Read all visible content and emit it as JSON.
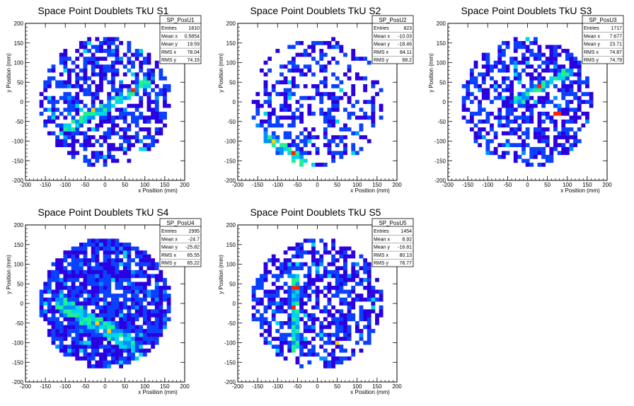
{
  "chart_data": [
    {
      "type": "heatmap",
      "title": "Space Point Doublets TkU S1",
      "histogram_name": "SP_PosU1",
      "xlabel": "x Position (mm)",
      "ylabel": "y Position (mm)",
      "xlim": [
        -200,
        200
      ],
      "ylim": [
        -200,
        200
      ],
      "xticks": [
        -200,
        -150,
        -100,
        -50,
        0,
        50,
        100,
        150,
        200
      ],
      "yticks": [
        -200,
        -150,
        -100,
        -50,
        0,
        50,
        100,
        150,
        200
      ],
      "stats": [
        {
          "label": "Entries",
          "value": "1810"
        },
        {
          "label": "Mean x",
          "value": "0.5854"
        },
        {
          "label": "Mean y",
          "value": "19.59"
        },
        {
          "label": "RMS x",
          "value": "78.04"
        },
        {
          "label": "RMS y",
          "value": "74.15"
        }
      ],
      "acceptance_radius": 165,
      "band": {
        "x0": -100,
        "y0": -70,
        "x1": 110,
        "y1": 50,
        "width": 10
      },
      "hotspots": [
        [
          70,
          35
        ],
        [
          -30,
          -20
        ],
        [
          20,
          0
        ]
      ],
      "fill_fraction": 0.55
    },
    {
      "type": "heatmap",
      "title": "Space Point Doublets TkU S2",
      "histogram_name": "SP_PosU2",
      "xlabel": "x Position (mm)",
      "ylabel": "y Position (mm)",
      "xlim": [
        -200,
        200
      ],
      "ylim": [
        -200,
        200
      ],
      "xticks": [
        -200,
        -150,
        -100,
        -50,
        0,
        50,
        100,
        150,
        200
      ],
      "yticks": [
        -200,
        -150,
        -100,
        -50,
        0,
        50,
        100,
        150,
        200
      ],
      "stats": [
        {
          "label": "Entries",
          "value": "823"
        },
        {
          "label": "Mean x",
          "value": "-10.03"
        },
        {
          "label": "Mean y",
          "value": "-18.46"
        },
        {
          "label": "RMS x",
          "value": "84.11"
        },
        {
          "label": "RMS y",
          "value": "68.2"
        }
      ],
      "acceptance_radius": 165,
      "band": {
        "x0": -130,
        "y0": -90,
        "x1": -40,
        "y1": -150,
        "width": 12
      },
      "hotspots": [
        [
          -110,
          -100
        ],
        [
          -60,
          -130
        ]
      ],
      "fill_fraction": 0.4
    },
    {
      "type": "heatmap",
      "title": "Space Point Doublets TkU S3",
      "histogram_name": "SP_PosU3",
      "xlabel": "x Position (mm)",
      "ylabel": "y Position (mm)",
      "xlim": [
        -200,
        200
      ],
      "ylim": [
        -200,
        200
      ],
      "xticks": [
        -200,
        -150,
        -100,
        -50,
        0,
        50,
        100,
        150,
        200
      ],
      "yticks": [
        -200,
        -150,
        -100,
        -50,
        0,
        50,
        100,
        150,
        200
      ],
      "stats": [
        {
          "label": "Entries",
          "value": "1717"
        },
        {
          "label": "Mean x",
          "value": "7.677"
        },
        {
          "label": "Mean y",
          "value": "23.71"
        },
        {
          "label": "RMS x",
          "value": "74.87"
        },
        {
          "label": "RMS y",
          "value": "74.79"
        }
      ],
      "acceptance_radius": 165,
      "band": {
        "x0": -30,
        "y0": 0,
        "x1": 110,
        "y1": 80,
        "width": 10
      },
      "hotspots": [
        [
          75,
          -30
        ],
        [
          30,
          40
        ]
      ],
      "fill_fraction": 0.55
    },
    {
      "type": "heatmap",
      "title": "Space Point Doublets TkU S4",
      "histogram_name": "SP_PosU4",
      "xlabel": "x Position (mm)",
      "ylabel": "y Position (mm)",
      "xlim": [
        -200,
        200
      ],
      "ylim": [
        -200,
        200
      ],
      "xticks": [
        -200,
        -150,
        -100,
        -50,
        0,
        50,
        100,
        150,
        200
      ],
      "yticks": [
        -200,
        -150,
        -100,
        -50,
        0,
        50,
        100,
        150,
        200
      ],
      "stats": [
        {
          "label": "Entries",
          "value": "2995"
        },
        {
          "label": "Mean x",
          "value": "-24.7"
        },
        {
          "label": "Mean y",
          "value": "-25.82"
        },
        {
          "label": "RMS x",
          "value": "65.55"
        },
        {
          "label": "RMS y",
          "value": "65.22"
        }
      ],
      "acceptance_radius": 165,
      "band": {
        "x0": -110,
        "y0": 0,
        "x1": 60,
        "y1": -100,
        "width": 18
      },
      "hotspots": [
        [
          -20,
          -50
        ],
        [
          10,
          -70
        ]
      ],
      "fill_fraction": 0.85
    },
    {
      "type": "heatmap",
      "title": "Space Point Doublets TkU S5",
      "histogram_name": "SP_PosU5",
      "xlabel": "x Position (mm)",
      "ylabel": "y Position (mm)",
      "xlim": [
        -200,
        200
      ],
      "ylim": [
        -200,
        200
      ],
      "xticks": [
        -200,
        -150,
        -100,
        -50,
        0,
        50,
        100,
        150,
        200
      ],
      "yticks": [
        -200,
        -150,
        -100,
        -50,
        0,
        50,
        100,
        150,
        200
      ],
      "stats": [
        {
          "label": "Entries",
          "value": "1454"
        },
        {
          "label": "Mean x",
          "value": "8.92"
        },
        {
          "label": "Mean y",
          "value": "-16.81"
        },
        {
          "label": "RMS x",
          "value": "80.13"
        },
        {
          "label": "RMS y",
          "value": "78.77"
        }
      ],
      "acceptance_radius": 165,
      "band": {
        "x0": -55,
        "y0": 70,
        "x1": -55,
        "y1": -120,
        "width": 8
      },
      "hotspots": [
        [
          -55,
          -10
        ],
        [
          50,
          -100
        ],
        [
          -55,
          40
        ]
      ],
      "fill_fraction": 0.6
    }
  ],
  "colors": {
    "palette": [
      "#2a00e0",
      "#0a40ff",
      "#0090ff",
      "#00d4e8",
      "#20f090",
      "#a0ff20",
      "#ffd000",
      "#ff2000"
    ],
    "frame": "#000000",
    "background": "#ffffff"
  }
}
